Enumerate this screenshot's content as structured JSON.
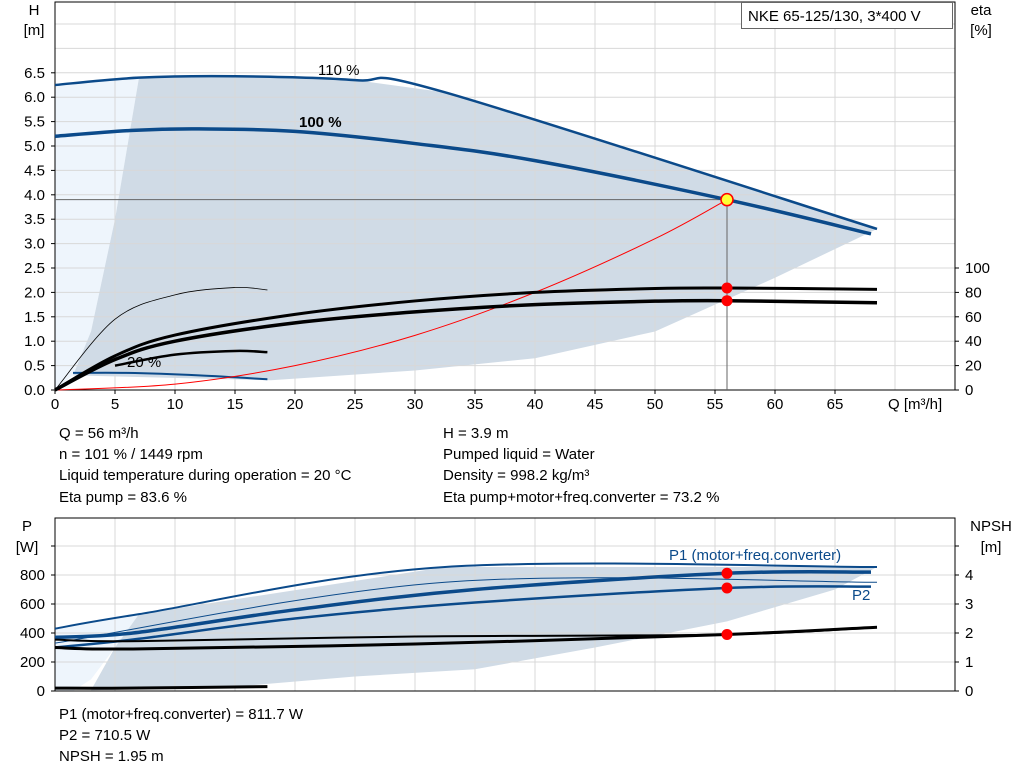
{
  "title": "NKE 65-125/130, 3*400 V",
  "colors": {
    "curve": "#0b4a8a",
    "area": "#d0dbe6",
    "area_light": "#eef5fc",
    "system": "#ff0000",
    "point": "#ff0000",
    "duty_point": "#ffff33",
    "grid": "#d8d8d8"
  },
  "chart_data": [
    {
      "type": "line",
      "ylabel": "H",
      "yunit": "[m]",
      "y2label": "eta",
      "y2unit": "[%]",
      "xlabel": "Q [m³/h]",
      "xlim": [
        0,
        75
      ],
      "ylim": [
        0,
        8
      ],
      "y2lim": [
        0,
        100
      ],
      "xticks": [
        "0",
        "5",
        "10",
        "15",
        "20",
        "25",
        "30",
        "35",
        "40",
        "45",
        "50",
        "55",
        "60",
        "65"
      ],
      "yticks": [
        "0.0",
        "0.5",
        "1.0",
        "1.5",
        "2.0",
        "2.5",
        "3.0",
        "3.5",
        "4.0",
        "4.5",
        "5.0",
        "5.5",
        "6.0",
        "6.5"
      ],
      "y2ticks": [
        "0",
        "20",
        "40",
        "60",
        "80",
        "100"
      ],
      "grid": true,
      "series": [
        {
          "name": "110 %",
          "axis": "H",
          "x": [
            0,
            7,
            15,
            25,
            32.5,
            68.5
          ],
          "y": [
            6.25,
            6.4,
            6.43,
            6.35,
            6.1,
            3.3
          ]
        },
        {
          "name": "100 %",
          "axis": "H",
          "x": [
            0,
            6.5,
            12,
            20,
            30,
            40,
            56,
            68
          ],
          "y": [
            5.2,
            5.32,
            5.35,
            5.3,
            5.05,
            4.7,
            3.9,
            3.2
          ]
        },
        {
          "name": "20 %",
          "axis": "H",
          "x": [
            1.5,
            6,
            12,
            17.7
          ],
          "y": [
            0.35,
            0.35,
            0.3,
            0.22
          ]
        },
        {
          "axis": "H",
          "role": "system",
          "x": [
            0,
            10,
            20,
            30,
            40,
            50,
            56
          ],
          "y": [
            0,
            0.12,
            0.5,
            1.12,
            2.0,
            3.1,
            3.9
          ]
        },
        {
          "axis": "eta",
          "role": "eta-pump",
          "x": [
            0,
            5,
            10,
            20,
            30,
            40,
            50,
            56,
            68.5
          ],
          "y": [
            0,
            28,
            45,
            62,
            73,
            80,
            83.2,
            83.6,
            82.5
          ]
        },
        {
          "axis": "eta",
          "role": "eta-total",
          "x": [
            0,
            5,
            10,
            20,
            30,
            40,
            50,
            56,
            68.5
          ],
          "y": [
            0,
            25,
            40,
            55,
            64,
            70,
            72.8,
            73.2,
            71.5
          ]
        },
        {
          "axis": "eta",
          "x": [
            0,
            5,
            10,
            15,
            17.7
          ],
          "y": [
            0,
            58,
            78,
            84,
            82
          ]
        },
        {
          "axis": "eta",
          "x": [
            5,
            10,
            15,
            17.7
          ],
          "y": [
            20,
            29,
            32,
            31
          ]
        }
      ],
      "duty_point": {
        "Q": 56,
        "H": 3.9,
        "eta_pump": 83.6,
        "eta_total": 73.2
      }
    },
    {
      "type": "line",
      "ylabel": "P",
      "yunit": "[W]",
      "y2label": "NPSH",
      "y2unit": "[m]",
      "xlim": [
        0,
        75
      ],
      "ylim": [
        0,
        1050
      ],
      "y2lim": [
        0,
        5.25
      ],
      "yticks": [
        "0",
        "200",
        "400",
        "600",
        "800"
      ],
      "y2ticks": [
        "0",
        "1",
        "2",
        "3",
        "4"
      ],
      "grid": true,
      "series": [
        {
          "axis": "P",
          "role": "p1-max",
          "x": [
            0,
            7,
            32.5,
            68.5
          ],
          "y": [
            430,
            530,
            855,
            855
          ]
        },
        {
          "name": "P1 (motor+freq.converter)",
          "axis": "P",
          "x": [
            0,
            6.5,
            20,
            35,
            56,
            68
          ],
          "y": [
            370,
            400,
            560,
            700,
            811.7,
            820
          ]
        },
        {
          "axis": "P",
          "role": "p2-max",
          "x": [
            0,
            32.5,
            68.5
          ],
          "y": [
            330,
            750,
            750
          ]
        },
        {
          "name": "P2",
          "axis": "P",
          "x": [
            0,
            7,
            20,
            35,
            56,
            68
          ],
          "y": [
            300,
            360,
            500,
            610,
            710.5,
            720
          ]
        },
        {
          "axis": "NPSH",
          "x": [
            0,
            7,
            30,
            56,
            68.5
          ],
          "y": [
            1.77,
            1.72,
            1.88,
            1.95,
            2.2
          ]
        },
        {
          "axis": "NPSH",
          "x": [
            0,
            6.5,
            30,
            56,
            68.5
          ],
          "y": [
            1.5,
            1.45,
            1.62,
            1.95,
            2.2
          ]
        },
        {
          "axis": "NPSH",
          "x": [
            0,
            6,
            17.7
          ],
          "y": [
            0.1,
            0.1,
            0.15
          ]
        }
      ],
      "duty_point": {
        "Q": 56,
        "P1": 811.7,
        "P2": 710.5,
        "NPSH": 1.95
      }
    }
  ],
  "labels": {
    "c110": "110 %",
    "c100": "100 %",
    "c20": "20 %",
    "p1": "P1 (motor+freq.converter)",
    "p2": "P2"
  },
  "info_top": {
    "q": "Q = 56 m³/h",
    "n": "n = 101 % / 1449 rpm",
    "temp": "Liquid temperature during operation = 20 °C",
    "eta_pump": "Eta pump = 83.6 %",
    "h": "H = 3.9 m",
    "liquid": "Pumped liquid = Water",
    "density": "Density = 998.2 kg/m³",
    "eta_total": "Eta pump+motor+freq.converter = 73.2 %"
  },
  "info_bottom": {
    "p1": "P1 (motor+freq.converter) = 811.7 W",
    "p2": "P2 = 710.5 W",
    "npsh": "NPSH = 1.95 m"
  }
}
